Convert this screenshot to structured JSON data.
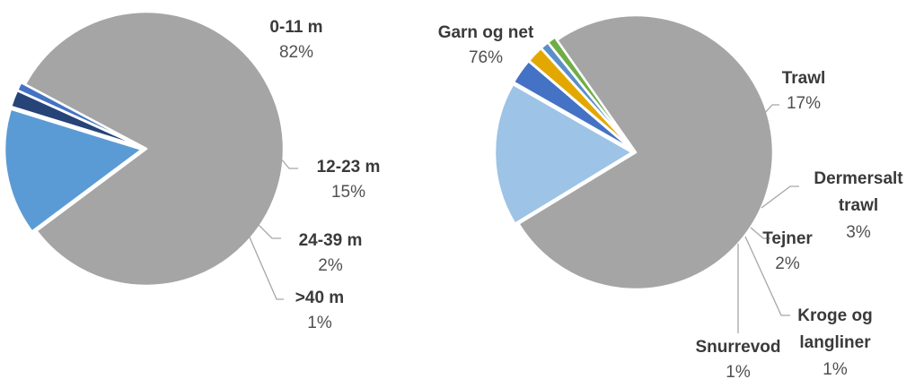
{
  "chart_data": [
    {
      "type": "pie",
      "title": "",
      "slices": [
        {
          "name": "0-11 m",
          "value": 82,
          "label": "82%",
          "color": "#a5a5a5"
        },
        {
          "name": "12-23 m",
          "value": 15,
          "label": "15%",
          "color": "#5b9bd5"
        },
        {
          "name": "24-39 m",
          "value": 2,
          "label": "2%",
          "color": "#264478"
        },
        {
          "name": ">40 m",
          "value": 1,
          "label": "1%",
          "color": "#4472c4"
        }
      ]
    },
    {
      "type": "pie",
      "title": "",
      "slices": [
        {
          "name": "Garn og net",
          "value": 76,
          "label": "76%",
          "color": "#a5a5a5"
        },
        {
          "name": "Trawl",
          "value": 17,
          "label": "17%",
          "color": "#9dc3e6"
        },
        {
          "name": "Dermersalt trawl",
          "lines": [
            "Dermersalt",
            "trawl"
          ],
          "value": 3,
          "label": "3%",
          "color": "#4472c4"
        },
        {
          "name": "Tejner",
          "value": 2,
          "label": "2%",
          "color": "#e2a800"
        },
        {
          "name": "Kroge og langliner",
          "lines": [
            "Kroge og",
            "langliner"
          ],
          "value": 1,
          "label": "1%",
          "color": "#5b8fc7"
        },
        {
          "name": "Snurrevod",
          "value": 1,
          "label": "1%",
          "color": "#70ad47"
        }
      ]
    }
  ]
}
